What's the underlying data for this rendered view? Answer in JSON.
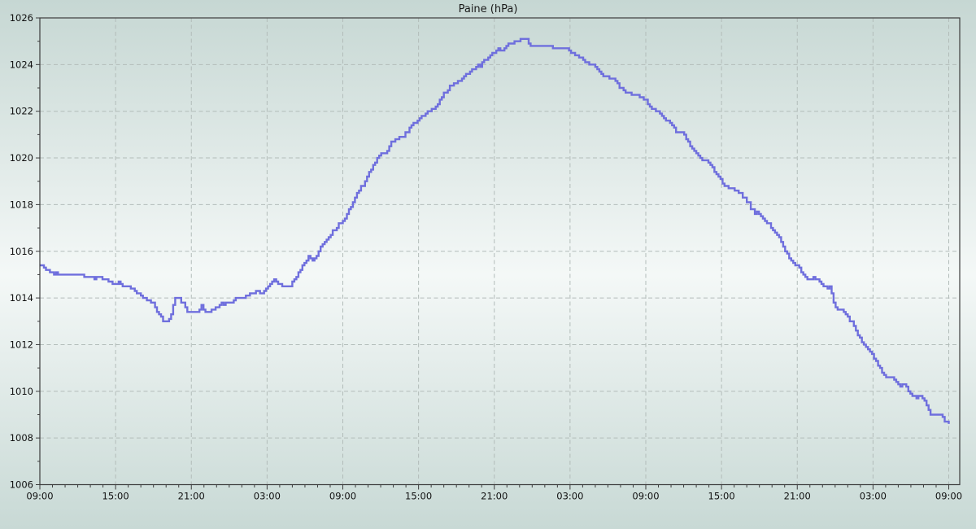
{
  "chart_data": {
    "type": "line",
    "title": "Paine (hPa)",
    "unit": "hPa",
    "x_axis": {
      "kind": "time",
      "tick_labels": [
        "09:00",
        "15:00",
        "21:00",
        "03:00",
        "09:00",
        "15:00",
        "21:00",
        "03:00",
        "09:00",
        "15:00",
        "21:00",
        "03:00",
        "09:00"
      ],
      "tick_interval_hours": 6,
      "minor_tick_interval_hours": 1,
      "range_hours": [
        0,
        72.9
      ],
      "span_days": 3
    },
    "y_axis": {
      "tick_labels": [
        "1006",
        "1008",
        "1010",
        "1012",
        "1014",
        "1016",
        "1018",
        "1020",
        "1022",
        "1024",
        "1026"
      ],
      "ticks": [
        1006,
        1008,
        1010,
        1012,
        1014,
        1016,
        1018,
        1020,
        1022,
        1024,
        1026
      ],
      "minor_tick_interval": 1,
      "range": [
        1006,
        1026
      ]
    },
    "grid": {
      "visible": true,
      "style": "dashed",
      "color": "#b2bcb9"
    },
    "colors": {
      "line": "#6f6fdd",
      "axis": "#3c3c3c",
      "text": "#111111",
      "background_top": "#c6d7d3",
      "background_middle": "#f4f8f7",
      "background_bottom": "#c8d9d5"
    },
    "series": [
      {
        "name": "Paine",
        "points_hour_hpa": [
          [
            0,
            1015.4
          ],
          [
            0.5,
            1015.2
          ],
          [
            1,
            1015.1
          ],
          [
            1.5,
            1015.05
          ],
          [
            2,
            1015.0
          ],
          [
            2.5,
            1015.0
          ],
          [
            3,
            1015.05
          ],
          [
            3.5,
            1014.9
          ],
          [
            4,
            1014.9
          ],
          [
            4.7,
            1014.85
          ],
          [
            5.2,
            1014.75
          ],
          [
            5.7,
            1014.6
          ],
          [
            6,
            1014.7
          ],
          [
            6.6,
            1014.55
          ],
          [
            7.2,
            1014.4
          ],
          [
            7.8,
            1014.2
          ],
          [
            8.4,
            1014.0
          ],
          [
            9.1,
            1013.7
          ],
          [
            9.3,
            1013.4
          ],
          [
            9.7,
            1013.1
          ],
          [
            10.0,
            1012.95
          ],
          [
            10.2,
            1013.1
          ],
          [
            10.4,
            1013.35
          ],
          [
            10.7,
            1013.95
          ],
          [
            11.0,
            1014.05
          ],
          [
            11.2,
            1013.85
          ],
          [
            11.5,
            1013.6
          ],
          [
            11.7,
            1013.4
          ],
          [
            11.9,
            1013.35
          ],
          [
            12.6,
            1013.35
          ],
          [
            12.8,
            1013.7
          ],
          [
            13.1,
            1013.4
          ],
          [
            13.4,
            1013.45
          ],
          [
            13.8,
            1013.6
          ],
          [
            14.2,
            1013.7
          ],
          [
            14.9,
            1013.75
          ],
          [
            15.3,
            1013.9
          ],
          [
            15.6,
            1014.0
          ],
          [
            16.0,
            1014.05
          ],
          [
            16.2,
            1014.0
          ],
          [
            16.6,
            1014.15
          ],
          [
            17.0,
            1014.2
          ],
          [
            17.3,
            1014.3
          ],
          [
            17.5,
            1014.15
          ],
          [
            17.7,
            1014.3
          ],
          [
            18.0,
            1014.4
          ],
          [
            18.35,
            1014.7
          ],
          [
            18.6,
            1014.8
          ],
          [
            19.0,
            1014.55
          ],
          [
            19.5,
            1014.5
          ],
          [
            19.9,
            1014.55
          ],
          [
            20.2,
            1014.8
          ],
          [
            20.7,
            1015.25
          ],
          [
            21.0,
            1015.5
          ],
          [
            21.3,
            1015.8
          ],
          [
            21.6,
            1015.6
          ],
          [
            22.0,
            1015.9
          ],
          [
            22.3,
            1016.3
          ],
          [
            22.6,
            1016.5
          ],
          [
            22.9,
            1016.6
          ],
          [
            23.1,
            1016.8
          ],
          [
            23.5,
            1017.0
          ],
          [
            23.9,
            1017.3
          ],
          [
            24.2,
            1017.45
          ],
          [
            24.7,
            1018.0
          ],
          [
            25.1,
            1018.5
          ],
          [
            25.5,
            1018.8
          ],
          [
            25.8,
            1019.0
          ],
          [
            26.1,
            1019.4
          ],
          [
            26.5,
            1019.7
          ],
          [
            27.0,
            1020.2
          ],
          [
            27.5,
            1020.3
          ],
          [
            27.9,
            1020.7
          ],
          [
            28.4,
            1020.85
          ],
          [
            28.9,
            1021.0
          ],
          [
            29.3,
            1021.3
          ],
          [
            29.7,
            1021.5
          ],
          [
            30.0,
            1021.7
          ],
          [
            30.5,
            1021.85
          ],
          [
            30.8,
            1022.0
          ],
          [
            31.2,
            1022.1
          ],
          [
            31.7,
            1022.5
          ],
          [
            32.2,
            1022.9
          ],
          [
            32.7,
            1023.2
          ],
          [
            33.2,
            1023.3
          ],
          [
            33.8,
            1023.55
          ],
          [
            34.2,
            1023.75
          ],
          [
            34.9,
            1024.0
          ],
          [
            35.5,
            1024.3
          ],
          [
            36.0,
            1024.55
          ],
          [
            36.4,
            1024.7
          ],
          [
            36.7,
            1024.6
          ],
          [
            37.0,
            1024.85
          ],
          [
            37.4,
            1024.95
          ],
          [
            37.9,
            1025.0
          ],
          [
            38.3,
            1025.1
          ],
          [
            38.6,
            1025.05
          ],
          [
            38.8,
            1024.8
          ],
          [
            39.2,
            1024.75
          ],
          [
            39.6,
            1024.8
          ],
          [
            40.0,
            1024.75
          ],
          [
            40.4,
            1024.8
          ],
          [
            40.7,
            1024.65
          ],
          [
            41.1,
            1024.7
          ],
          [
            41.7,
            1024.7
          ],
          [
            42.0,
            1024.55
          ],
          [
            42.4,
            1024.4
          ],
          [
            42.8,
            1024.3
          ],
          [
            43.2,
            1024.15
          ],
          [
            43.7,
            1024.0
          ],
          [
            44.1,
            1023.85
          ],
          [
            44.5,
            1023.6
          ],
          [
            45.0,
            1023.4
          ],
          [
            45.6,
            1023.35
          ],
          [
            46.0,
            1023.0
          ],
          [
            46.5,
            1022.8
          ],
          [
            47.1,
            1022.7
          ],
          [
            47.6,
            1022.6
          ],
          [
            48.0,
            1022.45
          ],
          [
            48.4,
            1022.1
          ],
          [
            49.0,
            1022.0
          ],
          [
            49.5,
            1021.65
          ],
          [
            49.9,
            1021.5
          ],
          [
            50.5,
            1021.1
          ],
          [
            51.0,
            1021.05
          ],
          [
            51.4,
            1020.65
          ],
          [
            51.9,
            1020.25
          ],
          [
            52.4,
            1019.9
          ],
          [
            52.8,
            1019.9
          ],
          [
            53.2,
            1019.65
          ],
          [
            53.7,
            1019.2
          ],
          [
            54.0,
            1019.0
          ],
          [
            54.6,
            1018.7
          ],
          [
            55.0,
            1018.65
          ],
          [
            55.6,
            1018.4
          ],
          [
            56.1,
            1018.1
          ],
          [
            56.4,
            1017.75
          ],
          [
            57.0,
            1017.6
          ],
          [
            57.4,
            1017.3
          ],
          [
            57.9,
            1017.05
          ],
          [
            58.4,
            1016.7
          ],
          [
            58.8,
            1016.3
          ],
          [
            59.3,
            1015.75
          ],
          [
            60.0,
            1015.4
          ],
          [
            60.4,
            1015.05
          ],
          [
            60.8,
            1014.8
          ],
          [
            61.3,
            1014.85
          ],
          [
            61.7,
            1014.8
          ],
          [
            62.1,
            1014.5
          ],
          [
            62.6,
            1014.45
          ],
          [
            63.0,
            1013.55
          ],
          [
            63.6,
            1013.5
          ],
          [
            64.3,
            1012.95
          ],
          [
            64.8,
            1012.4
          ],
          [
            65.3,
            1012.0
          ],
          [
            66.0,
            1011.55
          ],
          [
            66.4,
            1011.1
          ],
          [
            66.9,
            1010.65
          ],
          [
            67.5,
            1010.6
          ],
          [
            67.9,
            1010.3
          ],
          [
            68.5,
            1010.25
          ],
          [
            68.8,
            1010.0
          ],
          [
            69.2,
            1009.75
          ],
          [
            69.6,
            1009.8
          ],
          [
            70.0,
            1009.7
          ],
          [
            70.3,
            1009.3
          ],
          [
            70.6,
            1009.0
          ],
          [
            71.4,
            1009.0
          ],
          [
            71.7,
            1008.7
          ],
          [
            72.0,
            1008.6
          ]
        ]
      }
    ]
  }
}
